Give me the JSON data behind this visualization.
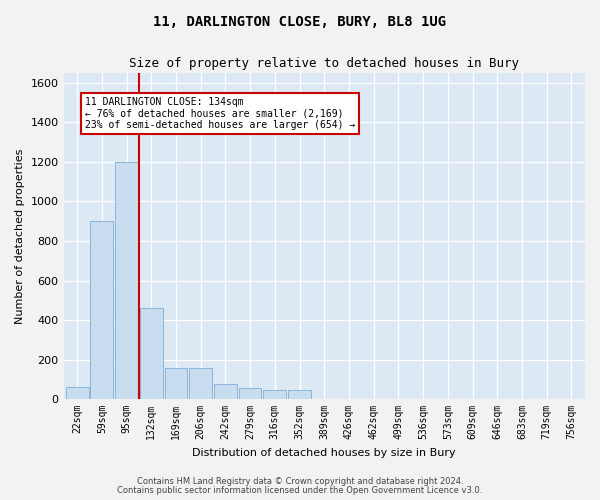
{
  "title": "11, DARLINGTON CLOSE, BURY, BL8 1UG",
  "subtitle": "Size of property relative to detached houses in Bury",
  "xlabel": "Distribution of detached houses by size in Bury",
  "ylabel": "Number of detached properties",
  "footer_line1": "Contains HM Land Registry data © Crown copyright and database right 2024.",
  "footer_line2": "Contains public sector information licensed under the Open Government Licence v3.0.",
  "property_label": "11 DARLINGTON CLOSE: 134sqm",
  "annotation_line1": "← 76% of detached houses are smaller (2,169)",
  "annotation_line2": "23% of semi-detached houses are larger (654) →",
  "bar_color": "#c8ddf0",
  "bar_edge_color": "#8ab4d8",
  "vline_color": "#cc0000",
  "background_color": "#dce8f4",
  "grid_color": "#ffffff",
  "categories": [
    "22sqm",
    "59sqm",
    "95sqm",
    "132sqm",
    "169sqm",
    "206sqm",
    "242sqm",
    "279sqm",
    "316sqm",
    "352sqm",
    "389sqm",
    "426sqm",
    "462sqm",
    "499sqm",
    "536sqm",
    "573sqm",
    "609sqm",
    "646sqm",
    "683sqm",
    "719sqm",
    "756sqm"
  ],
  "values": [
    60,
    900,
    1200,
    460,
    155,
    155,
    75,
    55,
    45,
    45,
    0,
    0,
    0,
    0,
    0,
    0,
    0,
    0,
    0,
    0,
    0
  ],
  "ylim": [
    0,
    1650
  ],
  "yticks": [
    0,
    200,
    400,
    600,
    800,
    1000,
    1200,
    1400,
    1600
  ],
  "vline_x_index": 2.5,
  "fig_bg_color": "#f2f2f2",
  "title_fontsize": 10,
  "subtitle_fontsize": 9,
  "ylabel_fontsize": 8,
  "xlabel_fontsize": 8,
  "tick_fontsize": 7,
  "footer_fontsize": 6,
  "annot_fontsize": 7
}
